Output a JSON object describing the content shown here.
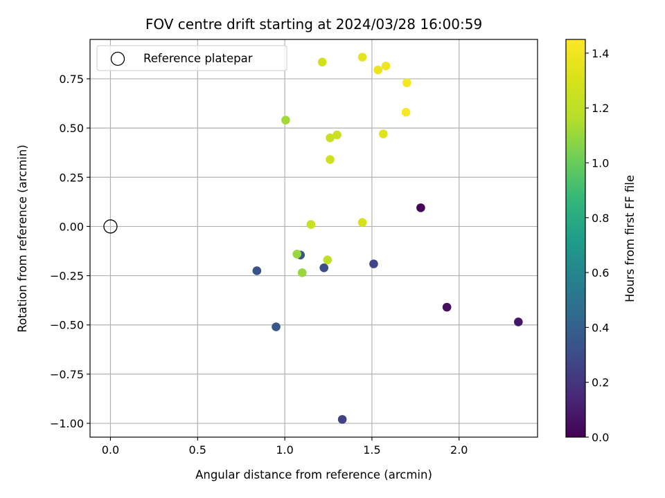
{
  "chart_data": {
    "type": "scatter",
    "title": "FOV centre drift starting at 2024/03/28 16:00:59",
    "xlabel": "Angular distance from reference (arcmin)",
    "ylabel": "Rotation from reference (arcmin)",
    "xlim": [
      -0.117,
      2.45
    ],
    "ylim": [
      -1.07,
      0.95
    ],
    "xticks": [
      0.0,
      0.5,
      1.0,
      1.5,
      2.0
    ],
    "xtick_labels": [
      "0.0",
      "0.5",
      "1.0",
      "1.5",
      "2.0"
    ],
    "yticks": [
      -1.0,
      -0.75,
      -0.5,
      -0.25,
      0.0,
      0.25,
      0.5,
      0.75
    ],
    "ytick_labels": [
      "−1.00",
      "−0.75",
      "−0.50",
      "−0.25",
      "0.00",
      "0.25",
      "0.50",
      "0.75"
    ],
    "grid": true,
    "legend": {
      "position": "top-left",
      "label": "Reference platepar"
    },
    "reference_point": {
      "x": 0.0,
      "y": 0.0
    },
    "colorbar": {
      "label": "Hours from first FF file",
      "range": [
        0.0,
        1.45
      ],
      "ticks": [
        0.0,
        0.2,
        0.4,
        0.6,
        0.8,
        1.0,
        1.2,
        1.4
      ],
      "tick_labels": [
        "0.0",
        "0.2",
        "0.4",
        "0.6",
        "0.8",
        "1.0",
        "1.2",
        "1.4"
      ],
      "colormap": "viridis"
    },
    "points": [
      {
        "x": 1.78,
        "y": 0.095,
        "c": 0.02
      },
      {
        "x": 1.93,
        "y": -0.41,
        "c": 0.05
      },
      {
        "x": 2.34,
        "y": -0.485,
        "c": 0.08
      },
      {
        "x": 1.33,
        "y": -0.98,
        "c": 0.25
      },
      {
        "x": 1.51,
        "y": -0.19,
        "c": 0.27
      },
      {
        "x": 1.225,
        "y": -0.21,
        "c": 0.3
      },
      {
        "x": 0.84,
        "y": -0.225,
        "c": 0.33
      },
      {
        "x": 0.95,
        "y": -0.51,
        "c": 0.35
      },
      {
        "x": 1.09,
        "y": -0.145,
        "c": 0.36
      },
      {
        "x": 1.07,
        "y": -0.14,
        "c": 1.1
      },
      {
        "x": 1.1,
        "y": -0.235,
        "c": 1.1
      },
      {
        "x": 1.005,
        "y": 0.54,
        "c": 1.12
      },
      {
        "x": 1.245,
        "y": -0.17,
        "c": 1.2
      },
      {
        "x": 1.15,
        "y": 0.01,
        "c": 1.23
      },
      {
        "x": 1.26,
        "y": 0.45,
        "c": 1.24
      },
      {
        "x": 1.3,
        "y": 0.465,
        "c": 1.25
      },
      {
        "x": 1.26,
        "y": 0.34,
        "c": 1.26
      },
      {
        "x": 1.215,
        "y": 0.835,
        "c": 1.28
      },
      {
        "x": 1.445,
        "y": 0.02,
        "c": 1.3
      },
      {
        "x": 1.565,
        "y": 0.47,
        "c": 1.33
      },
      {
        "x": 1.445,
        "y": 0.86,
        "c": 1.36
      },
      {
        "x": 1.535,
        "y": 0.795,
        "c": 1.38
      },
      {
        "x": 1.58,
        "y": 0.815,
        "c": 1.4
      },
      {
        "x": 1.7,
        "y": 0.73,
        "c": 1.42
      },
      {
        "x": 1.695,
        "y": 0.58,
        "c": 1.44
      }
    ]
  }
}
